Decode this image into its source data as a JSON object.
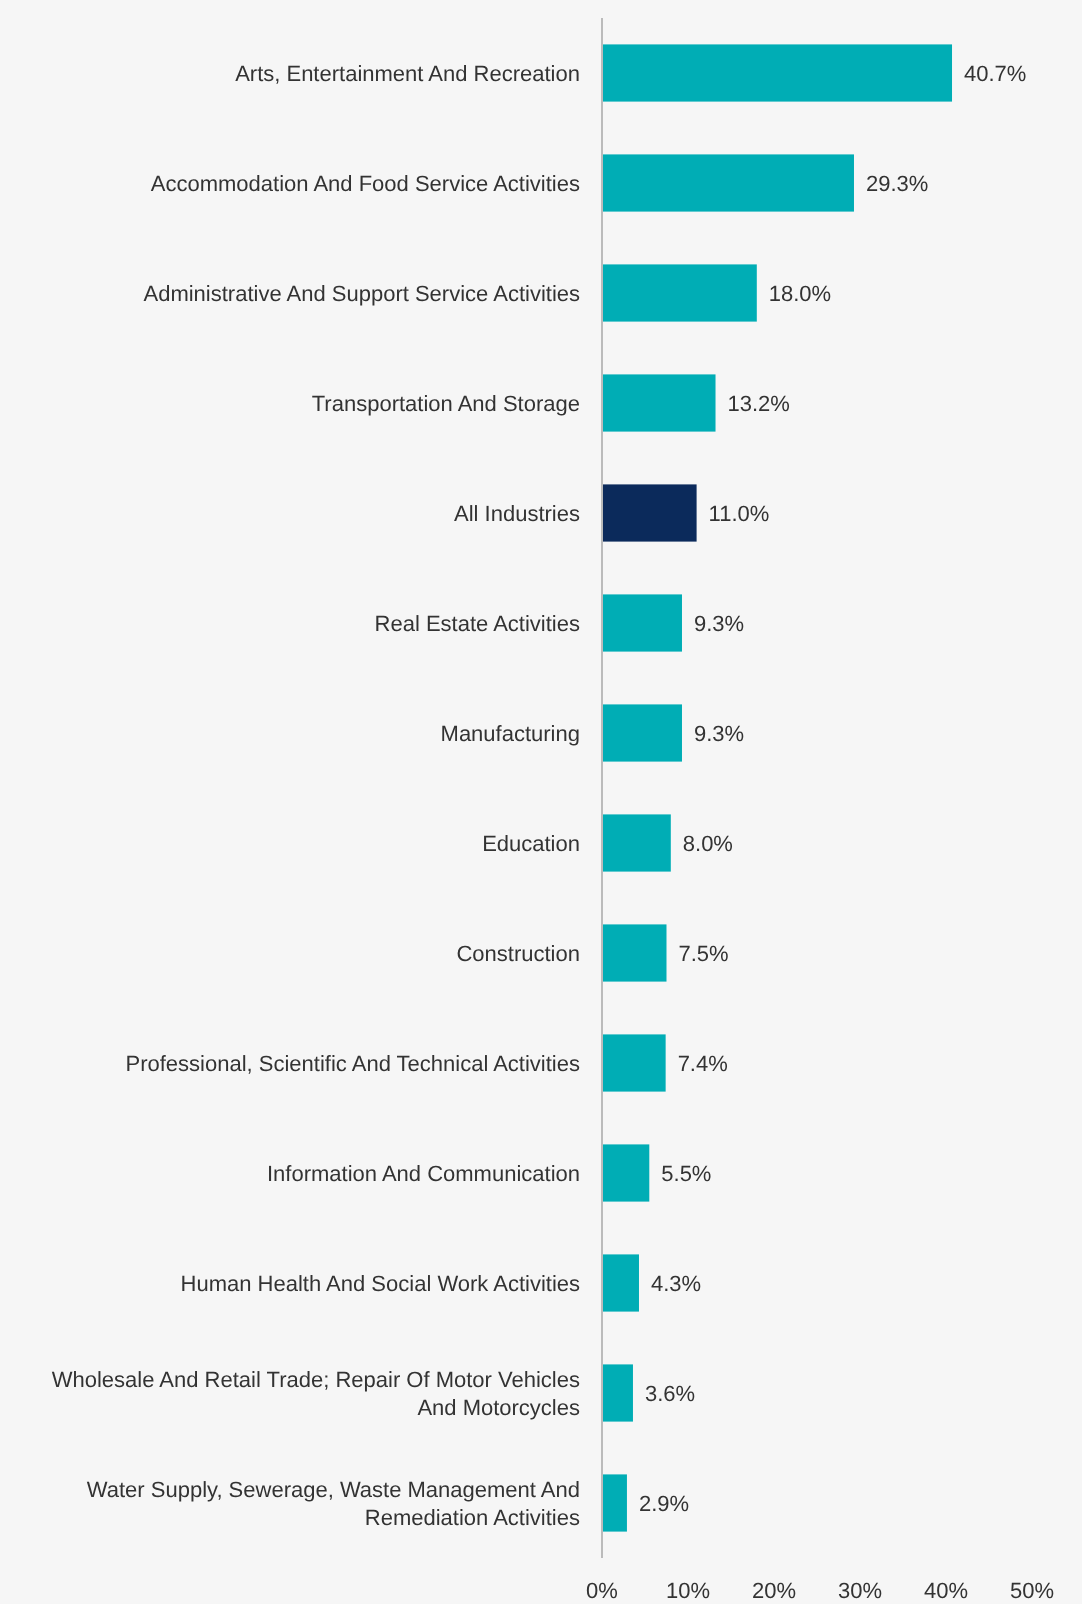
{
  "chart_data": {
    "type": "bar",
    "orientation": "horizontal",
    "categories": [
      "Arts, Entertainment And Recreation",
      "Accommodation And Food Service Activities",
      "Administrative And Support Service Activities",
      "Transportation And Storage",
      "All Industries",
      "Real Estate Activities",
      "Manufacturing",
      "Education",
      "Construction",
      "Professional, Scientific And Technical Activities",
      "Information And Communication",
      "Human Health And Social Work Activities",
      "Wholesale And Retail Trade; Repair Of Motor Vehicles And Motorcycles",
      "Water Supply, Sewerage, Waste Management And Remediation Activities"
    ],
    "values": [
      40.7,
      29.3,
      18.0,
      13.2,
      11.0,
      9.3,
      9.3,
      8.0,
      7.5,
      7.4,
      5.5,
      4.3,
      3.6,
      2.9
    ],
    "value_labels": [
      "40.7%",
      "29.3%",
      "18.0%",
      "13.2%",
      "11.0%",
      "9.3%",
      "9.3%",
      "8.0%",
      "7.5%",
      "7.4%",
      "5.5%",
      "4.3%",
      "3.6%",
      "2.9%"
    ],
    "colors": [
      "#00adb5",
      "#00adb5",
      "#00adb5",
      "#00adb5",
      "#0b2a5b",
      "#00adb5",
      "#00adb5",
      "#00adb5",
      "#00adb5",
      "#00adb5",
      "#00adb5",
      "#00adb5",
      "#00adb5",
      "#00adb5"
    ],
    "xlim": [
      0,
      50
    ],
    "xticks": [
      {
        "value": 0,
        "label": "0%"
      },
      {
        "value": 10,
        "label": "10%"
      },
      {
        "value": 20,
        "label": "20%"
      },
      {
        "value": 30,
        "label": "30%"
      },
      {
        "value": 40,
        "label": "40%"
      },
      {
        "value": 50,
        "label": "50%"
      }
    ],
    "grid": false
  }
}
